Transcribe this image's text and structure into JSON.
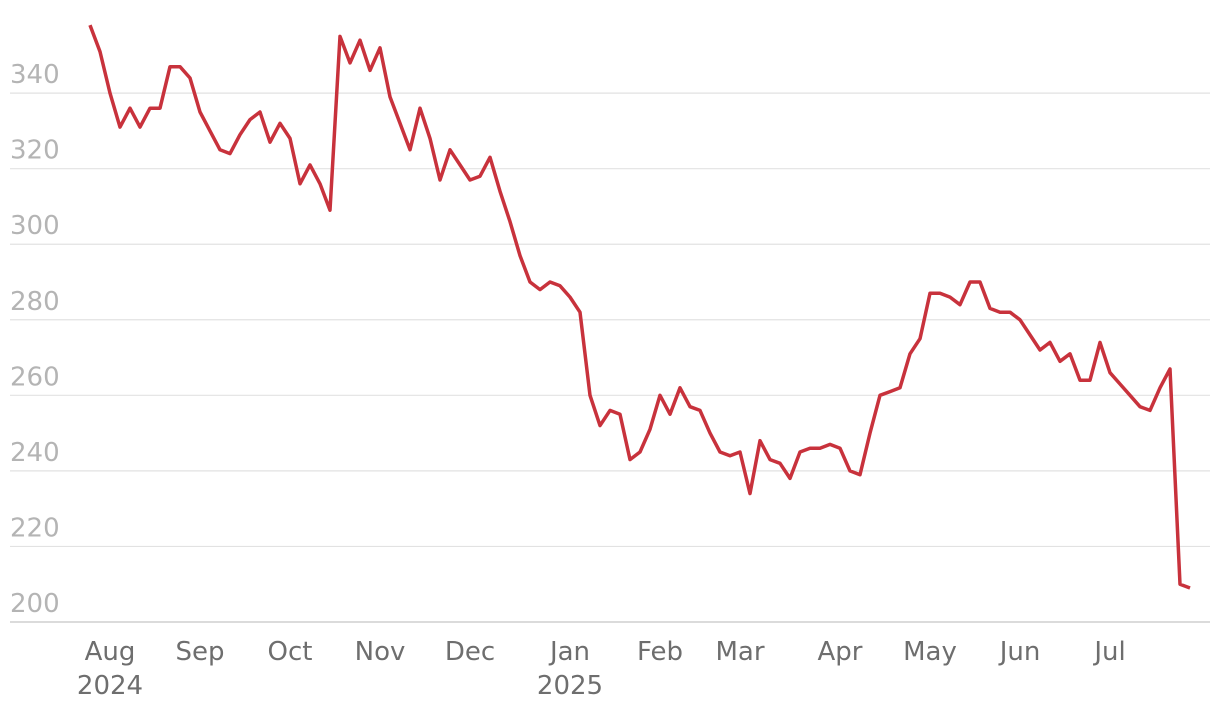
{
  "chart_data": {
    "type": "line",
    "categories": [
      null,
      null,
      "Aug 2024",
      null,
      null,
      null,
      null,
      null,
      null,
      null,
      null,
      "Sep",
      null,
      null,
      null,
      null,
      null,
      null,
      null,
      null,
      "Oct",
      null,
      null,
      null,
      null,
      null,
      null,
      null,
      null,
      "Nov",
      null,
      null,
      null,
      null,
      null,
      null,
      null,
      null,
      "Dec",
      null,
      null,
      null,
      null,
      null,
      null,
      null,
      null,
      null,
      "Jan 2025",
      null,
      null,
      null,
      null,
      null,
      null,
      null,
      null,
      "Feb",
      null,
      null,
      null,
      null,
      null,
      null,
      null,
      "Mar",
      null,
      null,
      null,
      null,
      null,
      null,
      null,
      null,
      null,
      "Apr",
      null,
      null,
      null,
      null,
      null,
      null,
      null,
      null,
      "May",
      null,
      null,
      null,
      null,
      null,
      null,
      null,
      null,
      "Jun",
      null,
      null,
      null,
      null,
      null,
      null,
      null,
      null,
      "Jul",
      null,
      null,
      null,
      null,
      null,
      null,
      null,
      null
    ],
    "series": [
      {
        "color": "#c8323c",
        "values": [
          358,
          351,
          340,
          331,
          336,
          331,
          336,
          336,
          347,
          347,
          344,
          335,
          330,
          325,
          324,
          329,
          333,
          335,
          327,
          332,
          328,
          316,
          321,
          316,
          309,
          355,
          348,
          354,
          346,
          352,
          339,
          332,
          325,
          336,
          328,
          317,
          325,
          321,
          317,
          318,
          323,
          314,
          306,
          297,
          290,
          288,
          290,
          289,
          286,
          282,
          260,
          252,
          256,
          255,
          243,
          245,
          251,
          260,
          255,
          262,
          257,
          256,
          250,
          245,
          244,
          245,
          234,
          248,
          243,
          242,
          238,
          245,
          246,
          246,
          247,
          246,
          240,
          239,
          250,
          260,
          261,
          262,
          271,
          275,
          287,
          287,
          286,
          284,
          290,
          290,
          283,
          282,
          282,
          280,
          276,
          272,
          274,
          269,
          271,
          264,
          264,
          274,
          266,
          263,
          260,
          257,
          256,
          262,
          267,
          210,
          209
        ]
      }
    ],
    "ylim": [
      200,
      362
    ],
    "yticks": [
      200,
      220,
      240,
      260,
      280,
      300,
      320,
      340
    ],
    "grid": true
  }
}
